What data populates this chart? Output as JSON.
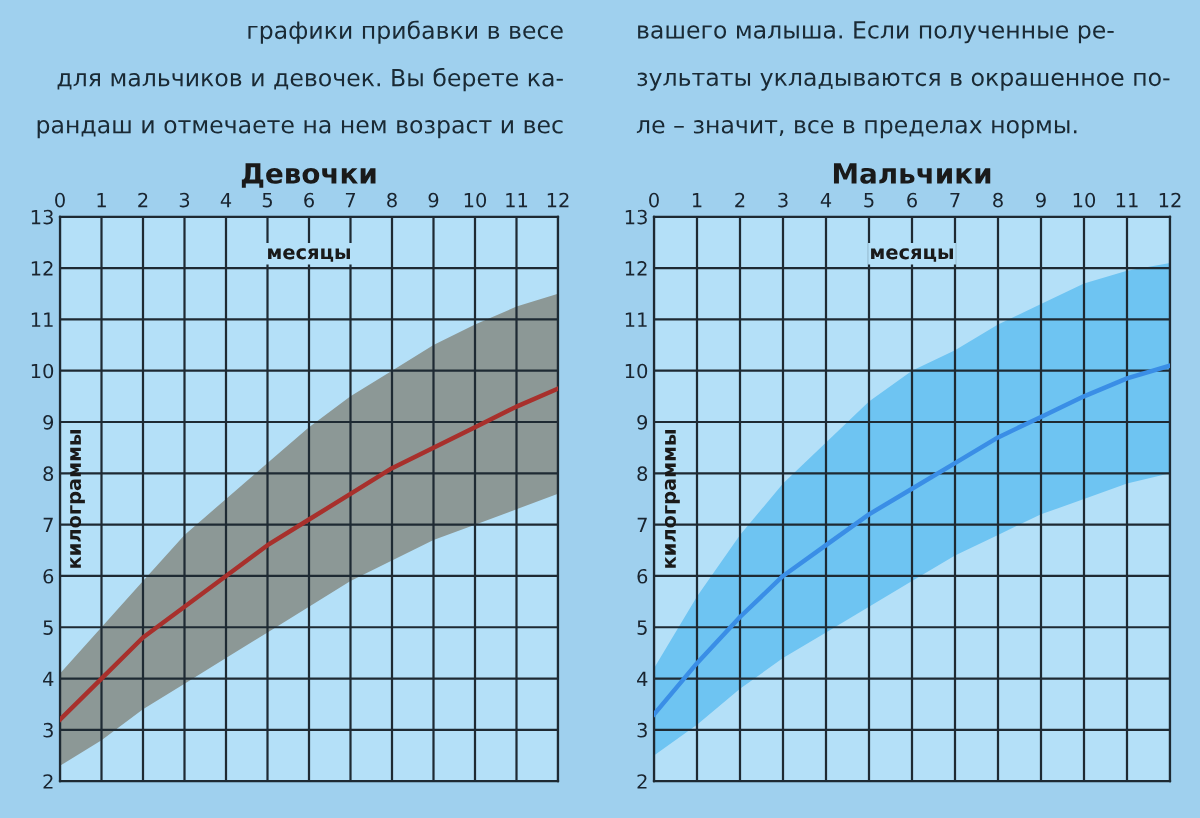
{
  "chart_data": [
    {
      "type": "line",
      "title": "Девочки",
      "xlabel": "месяцы",
      "ylabel": "килограммы",
      "annotations": [
        "графики прибавки в весе",
        "для мальчиков и девочек. Вы берете ка-",
        "рандаш и отмечаете на нем возраст и вес"
      ],
      "x": [
        0,
        1,
        2,
        3,
        4,
        5,
        6,
        7,
        8,
        9,
        10,
        11,
        12
      ],
      "series": [
        {
          "color": "#a8302c",
          "values": [
            3.2,
            4.0,
            4.8,
            5.4,
            6.0,
            6.6,
            7.1,
            7.6,
            8.1,
            8.5,
            8.9,
            9.3,
            9.65
          ],
          "lower": [
            2.3,
            2.8,
            3.4,
            3.9,
            4.4,
            4.9,
            5.4,
            5.9,
            6.3,
            6.7,
            7.0,
            7.3,
            7.6
          ],
          "upper": [
            4.1,
            5.0,
            5.9,
            6.8,
            7.5,
            8.2,
            8.9,
            9.5,
            10.0,
            10.5,
            10.9,
            11.25,
            11.5
          ]
        }
      ],
      "xlim": [
        0,
        12
      ],
      "ylim": [
        2,
        13
      ],
      "xticks": [
        0,
        1,
        2,
        3,
        4,
        5,
        6,
        7,
        8,
        9,
        10,
        11,
        12
      ],
      "yticks": [
        2,
        3,
        4,
        5,
        6,
        7,
        8,
        9,
        10,
        11,
        12,
        13
      ],
      "grid": true
    },
    {
      "type": "line",
      "title": "Мальчики",
      "xlabel": "месяцы",
      "ylabel": "килограммы",
      "annotations": [
        "вашего малыша. Если полученные ре-",
        "зультаты укладываются в окрашенное по-",
        "ле – значит, все в пределах нормы."
      ],
      "x": [
        0,
        1,
        2,
        3,
        4,
        5,
        6,
        7,
        8,
        9,
        10,
        11,
        12
      ],
      "series": [
        {
          "color": "#3a8ee6",
          "values": [
            3.3,
            4.3,
            5.2,
            6.0,
            6.6,
            7.2,
            7.7,
            8.2,
            8.7,
            9.1,
            9.5,
            9.85,
            10.1
          ],
          "lower": [
            2.5,
            3.1,
            3.8,
            4.4,
            4.9,
            5.4,
            5.9,
            6.4,
            6.8,
            7.2,
            7.5,
            7.8,
            8.0
          ],
          "upper": [
            4.2,
            5.6,
            6.8,
            7.8,
            8.6,
            9.4,
            10.0,
            10.4,
            10.9,
            11.3,
            11.7,
            11.95,
            12.1
          ]
        }
      ],
      "xlim": [
        0,
        12
      ],
      "ylim": [
        2,
        13
      ],
      "xticks": [
        0,
        1,
        2,
        3,
        4,
        5,
        6,
        7,
        8,
        9,
        10,
        11,
        12
      ],
      "yticks": [
        2,
        3,
        4,
        5,
        6,
        7,
        8,
        9,
        10,
        11,
        12,
        13
      ],
      "grid": true
    }
  ]
}
